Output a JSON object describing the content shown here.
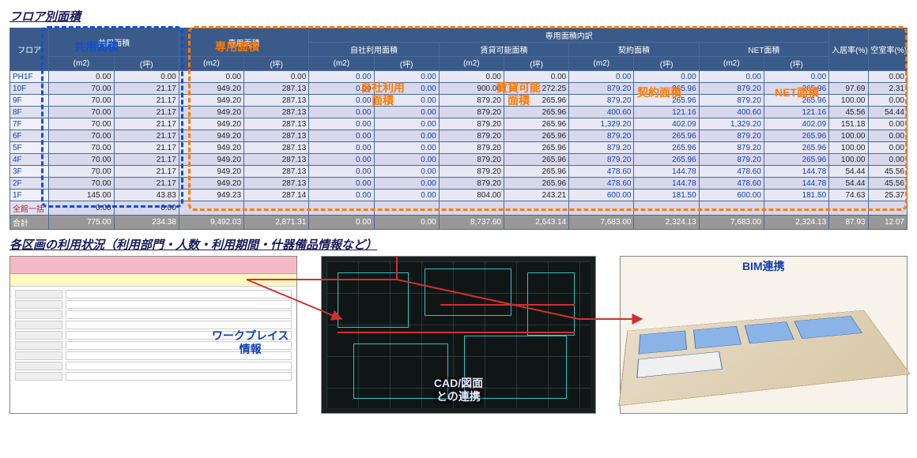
{
  "section1_title": "フロア別面積",
  "section2_title": "各区画の利用状況（利用部門・人数・利用期間・什器備品情報など）",
  "table": {
    "group_headers": [
      "共用面積",
      "専用面積",
      "専用面積内訳"
    ],
    "sub_group_headers": [
      "自社利用面積",
      "賃貸可能面積",
      "契約面積",
      "NET面積"
    ],
    "unit_headers": [
      "(m2)",
      "(坪)"
    ],
    "floor_header": "フロア",
    "rate_headers": [
      "入居率(%)",
      "空室率(%)"
    ],
    "total_label": "合計",
    "zero_label": "全館一括"
  },
  "overlays": {
    "shared": "共用面積",
    "exclusive": "専用面積",
    "own_use": "自社利用\n面積",
    "leasable": "賃貸可能\n面積",
    "contract": "契約面積",
    "net": "NET面積"
  },
  "rows": [
    {
      "fl": "PH1F",
      "a": "0.00",
      "b": "0.00",
      "c": "0.00",
      "d": "0.00",
      "e": "0.00",
      "f": "0.00",
      "g": "0.00",
      "h": "0.00",
      "i": "0.00",
      "j": "0.00",
      "k": "0.00",
      "l": "0.00",
      "m": "",
      "n": "0.00"
    },
    {
      "fl": "10F",
      "a": "70.00",
      "b": "21.17",
      "c": "949.20",
      "d": "287.13",
      "e": "0.00",
      "f": "0.00",
      "g": "900.00",
      "h": "272.25",
      "i": "879.20",
      "j": "265.96",
      "k": "879.20",
      "l": "265.96",
      "m": "97.69",
      "n": "2.31"
    },
    {
      "fl": "9F",
      "a": "70.00",
      "b": "21.17",
      "c": "949.20",
      "d": "287.13",
      "e": "0.00",
      "f": "0.00",
      "g": "879.20",
      "h": "265.96",
      "i": "879.20",
      "j": "265.96",
      "k": "879.20",
      "l": "265.96",
      "m": "100.00",
      "n": "0.00"
    },
    {
      "fl": "8F",
      "a": "70.00",
      "b": "21.17",
      "c": "949.20",
      "d": "287.13",
      "e": "0.00",
      "f": "0.00",
      "g": "879.20",
      "h": "265.96",
      "i": "400.60",
      "j": "121.16",
      "k": "400.60",
      "l": "121.16",
      "m": "45.56",
      "n": "54.44"
    },
    {
      "fl": "7F",
      "a": "70.00",
      "b": "21.17",
      "c": "949.20",
      "d": "287.13",
      "e": "0.00",
      "f": "0.00",
      "g": "879.20",
      "h": "265.96",
      "i": "1,329.20",
      "j": "402.09",
      "k": "1,329.20",
      "l": "402.09",
      "m": "151.18",
      "n": "0.00"
    },
    {
      "fl": "6F",
      "a": "70.00",
      "b": "21.17",
      "c": "949.20",
      "d": "287.13",
      "e": "0.00",
      "f": "0.00",
      "g": "879.20",
      "h": "265.96",
      "i": "879.20",
      "j": "265.96",
      "k": "879.20",
      "l": "265.96",
      "m": "100.00",
      "n": "0.00"
    },
    {
      "fl": "5F",
      "a": "70.00",
      "b": "21.17",
      "c": "949.20",
      "d": "287.13",
      "e": "0.00",
      "f": "0.00",
      "g": "879.20",
      "h": "265.96",
      "i": "879.20",
      "j": "265.96",
      "k": "879.20",
      "l": "265.96",
      "m": "100.00",
      "n": "0.00"
    },
    {
      "fl": "4F",
      "a": "70.00",
      "b": "21.17",
      "c": "949.20",
      "d": "287.13",
      "e": "0.00",
      "f": "0.00",
      "g": "879.20",
      "h": "265.96",
      "i": "879.20",
      "j": "265.96",
      "k": "879.20",
      "l": "265.96",
      "m": "100.00",
      "n": "0.00"
    },
    {
      "fl": "3F",
      "a": "70.00",
      "b": "21.17",
      "c": "949.20",
      "d": "287.13",
      "e": "0.00",
      "f": "0.00",
      "g": "879.20",
      "h": "265.96",
      "i": "478.60",
      "j": "144.78",
      "k": "478.60",
      "l": "144.78",
      "m": "54.44",
      "n": "45.56"
    },
    {
      "fl": "2F",
      "a": "70.00",
      "b": "21.17",
      "c": "949.20",
      "d": "287.13",
      "e": "0.00",
      "f": "0.00",
      "g": "879.20",
      "h": "265.96",
      "i": "478.60",
      "j": "144.78",
      "k": "478.60",
      "l": "144.78",
      "m": "54.44",
      "n": "45.56"
    },
    {
      "fl": "1F",
      "a": "145.00",
      "b": "43.83",
      "c": "949.23",
      "d": "287.14",
      "e": "0.00",
      "f": "0.00",
      "g": "804.00",
      "h": "243.21",
      "i": "600.00",
      "j": "181.50",
      "k": "600.00",
      "l": "181.50",
      "m": "74.63",
      "n": "25.37"
    },
    {
      "fl": "全館一括",
      "a": "0.00",
      "b": "0.00",
      "c": "",
      "d": "",
      "e": "",
      "f": "",
      "g": "",
      "h": "",
      "i": "",
      "j": "",
      "k": "",
      "l": "",
      "m": "",
      "n": "",
      "zero": true
    }
  ],
  "total": {
    "fl": "合計",
    "a": "775.00",
    "b": "234.38",
    "c": "9,492.03",
    "d": "2,871.31",
    "e": "0.00",
    "f": "0.00",
    "g": "8,737.60",
    "h": "2,643.14",
    "i": "7,683.00",
    "j": "2,324.13",
    "k": "7,683.00",
    "l": "2,324.13",
    "m": "87.93",
    "n": "12.07"
  },
  "captions": {
    "workplace": "ワークプレイス\n情報",
    "cad": "CAD/図面\nとの連携",
    "bim": "BIM連携"
  },
  "colors": {
    "blue_dash": "#1050d0",
    "orange_dash": "#ff7a00",
    "arrow_red": "#d03030",
    "caption_blue": "#1040b0",
    "caption_orange": "#e06a00"
  }
}
